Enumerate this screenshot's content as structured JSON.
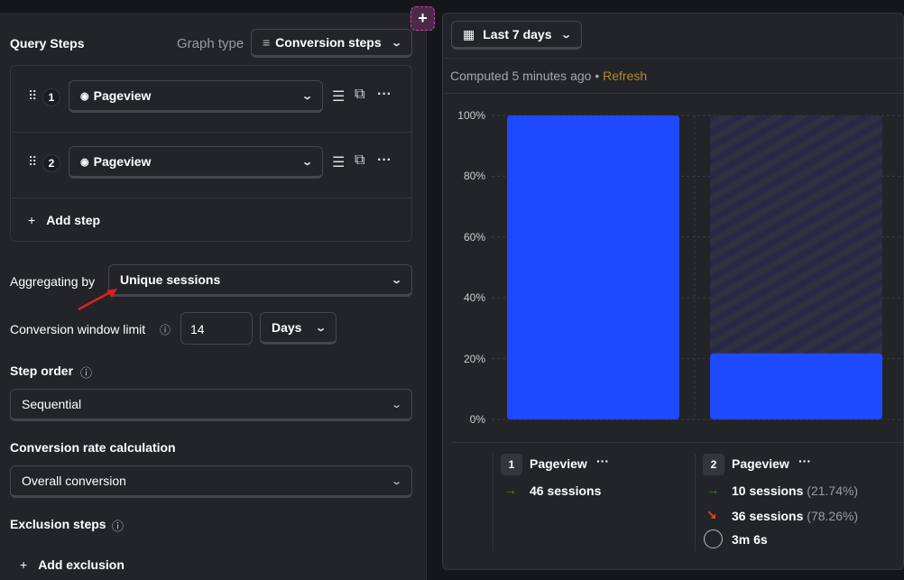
{
  "query": {
    "title": "Query Steps",
    "graph_type_label": "Graph type",
    "graph_type": "Conversion steps",
    "steps": [
      {
        "n": "1",
        "event": "Pageview"
      },
      {
        "n": "2",
        "event": "Pageview"
      }
    ],
    "add_step": "Add step"
  },
  "aggregating": {
    "label": "Aggregating by",
    "value": "Unique sessions"
  },
  "window": {
    "label": "Conversion window limit",
    "value": "14",
    "unit": "Days"
  },
  "step_order": {
    "label": "Step order",
    "value": "Sequential"
  },
  "rate_calc": {
    "label": "Conversion rate calculation",
    "value": "Overall conversion"
  },
  "exclusion": {
    "label": "Exclusion steps",
    "add": "Add exclusion"
  },
  "date_range": "Last 7 days",
  "computed": {
    "text": "Computed 5 minutes ago",
    "refresh": "Refresh"
  },
  "colors": {
    "bar": "#1d4aff",
    "refresh": "#b48a2a",
    "success": "#3a9a1a",
    "drop": "#e0461a"
  },
  "chart_data": {
    "type": "bar",
    "categories": [
      "Pageview",
      "Pageview"
    ],
    "values": [
      100,
      21.74
    ],
    "y_ticks": [
      "100%",
      "80%",
      "60%",
      "40%",
      "20%",
      "0%"
    ],
    "ylim": [
      0,
      100
    ]
  },
  "legend": [
    {
      "n": "1",
      "event": "Pageview",
      "converted": "46 sessions"
    },
    {
      "n": "2",
      "event": "Pageview",
      "converted": "10 sessions",
      "converted_pct": "(21.74%)",
      "dropped": "36 sessions",
      "dropped_pct": "(78.26%)",
      "time": "3m 6s"
    }
  ]
}
